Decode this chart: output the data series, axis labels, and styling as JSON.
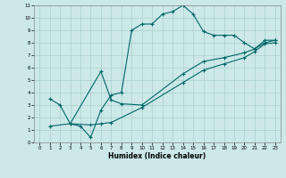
{
  "xlabel": "Humidex (Indice chaleur)",
  "xlim": [
    -0.5,
    23.5
  ],
  "ylim": [
    0,
    11
  ],
  "xticks": [
    0,
    1,
    2,
    3,
    4,
    5,
    6,
    7,
    8,
    9,
    10,
    11,
    12,
    13,
    14,
    15,
    16,
    17,
    18,
    19,
    20,
    21,
    22,
    23
  ],
  "yticks": [
    0,
    1,
    2,
    3,
    4,
    5,
    6,
    7,
    8,
    9,
    10,
    11
  ],
  "bg_color": "#cce8e8",
  "line_color": "#006666",
  "line1_x": [
    1,
    2,
    3,
    4,
    5,
    6,
    7,
    8,
    9,
    10,
    11,
    12,
    13,
    14,
    15,
    16,
    17,
    18,
    19,
    20,
    21,
    22,
    23
  ],
  "line1_y": [
    3.5,
    3.0,
    1.5,
    1.3,
    0.4,
    2.6,
    3.8,
    4.0,
    9.0,
    9.5,
    9.5,
    10.3,
    10.5,
    11.0,
    10.3,
    8.9,
    8.6,
    8.6,
    8.6,
    8.0,
    7.5,
    8.2,
    8.2
  ],
  "line2_x": [
    3,
    6,
    7,
    8,
    10,
    14,
    16,
    18,
    20,
    21,
    22,
    23
  ],
  "line2_y": [
    1.5,
    5.7,
    3.4,
    3.1,
    3.0,
    5.5,
    6.5,
    6.8,
    7.2,
    7.5,
    8.0,
    8.2
  ],
  "line3_x": [
    1,
    3,
    5,
    6,
    7,
    10,
    14,
    16,
    18,
    20,
    21,
    22,
    23
  ],
  "line3_y": [
    1.3,
    1.5,
    1.4,
    1.5,
    1.6,
    2.8,
    4.8,
    5.8,
    6.3,
    6.8,
    7.3,
    7.9,
    8.0
  ]
}
